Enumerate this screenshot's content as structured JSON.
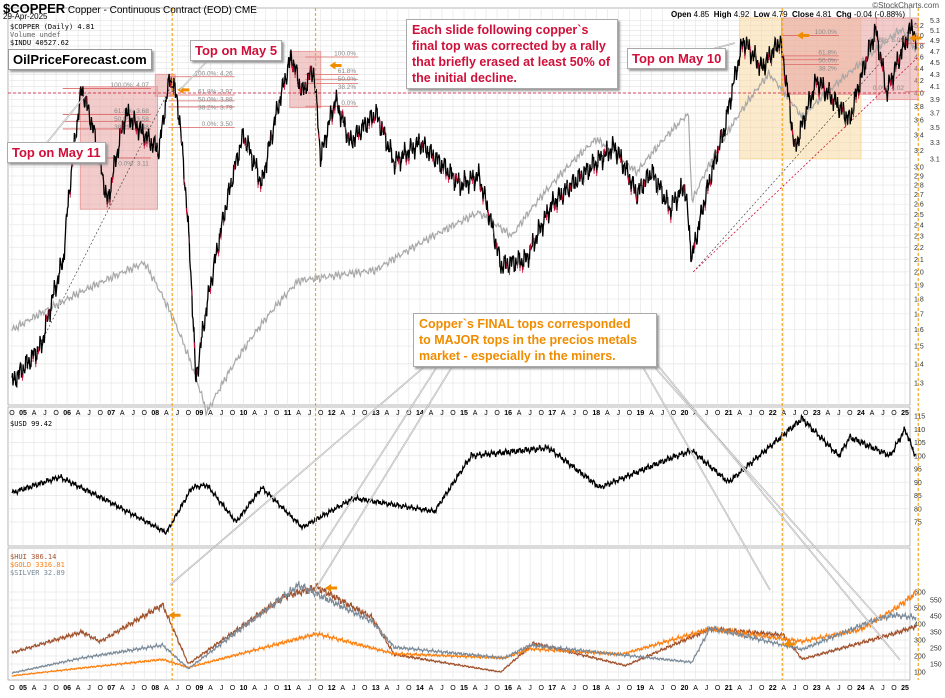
{
  "header": {
    "symbol": "$COPPER",
    "description": "Copper - Continuous Contract (EOD)",
    "exchange": "CME",
    "date": "29-Apr-2025",
    "watermark": "©StockCharts.com",
    "open_label": "Open",
    "open": "4.85",
    "high_label": "High",
    "high": "4.92",
    "low_label": "Low",
    "low": "4.79",
    "close_label": "Close",
    "close": "4.81",
    "chg_label": "Chg",
    "chg": "-0.04 (-0.88%)"
  },
  "legend_top": [
    "$COPPER (Daily) 4.81",
    "Volume undef",
    "$INDU 40527.62"
  ],
  "legend_usd": "$USD 99.42",
  "legend_metals": [
    {
      "text": "$HUI 386.14",
      "color": "#a0522d"
    },
    {
      "text": "$GOLD 3316.81",
      "color": "#ff7f0e"
    },
    {
      "text": "$SILVER 32.89",
      "color": "#7a8a99"
    }
  ],
  "site_label": "OilPriceForecast.com",
  "callouts": {
    "may11": "Top on May 11",
    "may5": "Top on May 5",
    "may10": "Top on May 10",
    "slide_note": [
      "Each slide following copper`s",
      "final top was corrected by a rally",
      "that briefly erased at least 50% of",
      "the initial decline."
    ],
    "final_tops": [
      "Copper`s FINAL tops corresponded",
      "to MAJOR tops in the precios metals",
      "market - especially in the miners."
    ]
  },
  "fib_2006": [
    "100.0%: 4.07",
    "61.8%: 3.68",
    "50.0%: 3.58",
    "38.2%: 3.48",
    "0.0%: 3.11"
  ],
  "fib_2008": [
    "100.0%: 4.26",
    "61.8%: 3.97",
    "50.0%: 3.88",
    "38.2%: 3.79",
    "0.0%: 3.50"
  ],
  "fib_2011": [
    "100.0%",
    "61.8%",
    "50.0%",
    "38.2%",
    "0.0%"
  ],
  "fib_2021": [
    "100.0%",
    "61.8%",
    "50.0%",
    "38.2%"
  ],
  "fib_2024": [
    "61.8%: 5.06",
    "0.0%: 4.02"
  ],
  "colors": {
    "copper": "#000000",
    "copper_down": "#d0103a",
    "indu": "#a8a8a8",
    "usd": "#000000",
    "hui": "#a0522d",
    "gold": "#ff7f0e",
    "silver": "#7a8a99",
    "marker": "#f5a623",
    "box_red": "#e8a0a0",
    "box_orange": "#f8d9a0"
  },
  "chart_data": {
    "type": "line",
    "x_tick_labels": [
      "O",
      "05",
      "A",
      "J",
      "O",
      "06",
      "A",
      "J",
      "O",
      "07",
      "A",
      "J",
      "O",
      "08",
      "A",
      "J",
      "O",
      "09",
      "A",
      "J",
      "O",
      "10",
      "A",
      "J",
      "O",
      "11",
      "A",
      "J",
      "O",
      "12",
      "A",
      "J",
      "O",
      "13",
      "A",
      "J",
      "O",
      "14",
      "A",
      "J",
      "O",
      "15",
      "A",
      "J",
      "O",
      "16",
      "A",
      "J",
      "O",
      "17",
      "A",
      "J",
      "O",
      "18",
      "A",
      "J",
      "O",
      "19",
      "A",
      "J",
      "O",
      "20",
      "A",
      "J",
      "O",
      "21",
      "A",
      "J",
      "O",
      "22",
      "A",
      "J",
      "O",
      "23",
      "A",
      "J",
      "O",
      "24",
      "A",
      "J",
      "O",
      "25",
      "A"
    ],
    "x_range": [
      "2004-10",
      "2025-04"
    ],
    "panels": [
      {
        "name": "copper",
        "scale": "log",
        "ylim": [
          1.25,
          5.35
        ],
        "y_ticks": [
          1.3,
          1.4,
          1.5,
          1.6,
          1.7,
          1.8,
          1.9,
          2.0,
          2.1,
          2.2,
          2.3,
          2.4,
          2.5,
          2.6,
          2.7,
          2.8,
          2.9,
          3.0,
          3.1,
          3.2,
          3.3,
          3.4,
          3.5,
          3.6,
          3.7,
          3.8,
          3.9,
          4.0,
          4.1,
          4.2,
          4.3,
          4.4,
          4.5,
          4.6,
          4.7,
          4.8,
          4.9,
          5.0,
          5.1,
          5.2,
          5.3
        ],
        "reference_line": 4.0,
        "series": [
          {
            "name": "$COPPER",
            "points": [
              [
                "2004-10",
                1.3
              ],
              [
                "2005-06",
                1.5
              ],
              [
                "2005-12",
                2.1
              ],
              [
                "2006-05",
                4.07
              ],
              [
                "2006-08",
                3.5
              ],
              [
                "2006-12",
                2.6
              ],
              [
                "2007-05",
                3.7
              ],
              [
                "2007-10",
                3.4
              ],
              [
                "2008-02",
                3.2
              ],
              [
                "2008-05",
                4.26
              ],
              [
                "2008-07",
                3.9
              ],
              [
                "2008-12",
                1.3
              ],
              [
                "2009-06",
                2.2
              ],
              [
                "2010-01",
                3.4
              ],
              [
                "2010-06",
                2.8
              ],
              [
                "2011-02",
                4.6
              ],
              [
                "2011-05",
                4.0
              ],
              [
                "2011-08",
                4.4
              ],
              [
                "2011-10",
                3.1
              ],
              [
                "2012-02",
                3.9
              ],
              [
                "2012-06",
                3.3
              ],
              [
                "2013-01",
                3.7
              ],
              [
                "2013-06",
                3.05
              ],
              [
                "2014-01",
                3.3
              ],
              [
                "2014-12",
                2.8
              ],
              [
                "2015-05",
                2.9
              ],
              [
                "2015-11",
                2.05
              ],
              [
                "2016-06",
                2.1
              ],
              [
                "2017-01",
                2.6
              ],
              [
                "2018-06",
                3.25
              ],
              [
                "2018-12",
                2.7
              ],
              [
                "2019-04",
                2.95
              ],
              [
                "2019-09",
                2.55
              ],
              [
                "2020-01",
                2.8
              ],
              [
                "2020-03",
                2.1
              ],
              [
                "2020-12",
                3.5
              ],
              [
                "2021-05",
                4.9
              ],
              [
                "2021-10",
                4.4
              ],
              [
                "2022-03",
                4.9
              ],
              [
                "2022-07",
                3.2
              ],
              [
                "2023-01",
                4.2
              ],
              [
                "2023-10",
                3.6
              ],
              [
                "2024-05",
                5.1
              ],
              [
                "2024-08",
                4.0
              ],
              [
                "2025-03",
                5.2
              ],
              [
                "2025-04",
                4.81
              ]
            ]
          },
          {
            "name": "$INDU",
            "points": [
              [
                "2004-10",
                10000
              ],
              [
                "2007-10",
                14000
              ],
              [
                "2009-03",
                6600
              ],
              [
                "2011-04",
                12800
              ],
              [
                "2013-01",
                13500
              ],
              [
                "2015-05",
                18000
              ],
              [
                "2016-02",
                16000
              ],
              [
                "2018-01",
                26000
              ],
              [
                "2018-12",
                22000
              ],
              [
                "2020-02",
                29500
              ],
              [
                "2020-03",
                19000
              ],
              [
                "2021-12",
                36000
              ],
              [
                "2022-09",
                29000
              ],
              [
                "2024-01",
                38000
              ],
              [
                "2024-12",
                45000
              ],
              [
                "2025-04",
                40527.62
              ]
            ]
          }
        ]
      },
      {
        "name": "usd",
        "scale": "linear",
        "ylim": [
          70,
          117
        ],
        "y_ticks": [
          75,
          80,
          85,
          90,
          95,
          100,
          105,
          110,
          115
        ],
        "series": [
          {
            "name": "$USD",
            "points": [
              [
                "2004-10",
                86
              ],
              [
                "2005-11",
                92
              ],
              [
                "2006-12",
                83
              ],
              [
                "2008-04",
                71
              ],
              [
                "2008-11",
                88
              ],
              [
                "2009-03",
                89
              ],
              [
                "2009-11",
                75
              ],
              [
                "2010-06",
                88
              ],
              [
                "2011-05",
                73
              ],
              [
                "2012-07",
                84
              ],
              [
                "2014-05",
                79
              ],
              [
                "2015-03",
                100
              ],
              [
                "2016-12",
                103
              ],
              [
                "2018-02",
                88
              ],
              [
                "2019-09",
                99
              ],
              [
                "2020-03",
                102
              ],
              [
                "2021-01",
                90
              ],
              [
                "2022-09",
                114
              ],
              [
                "2023-07",
                100
              ],
              [
                "2023-10",
                107
              ],
              [
                "2024-09",
                100
              ],
              [
                "2025-01",
                110
              ],
              [
                "2025-04",
                99.42
              ]
            ]
          }
        ]
      },
      {
        "name": "metals",
        "scale": "linear",
        "ylim": [
          90,
          640
        ],
        "y_ticks": [
          100,
          150,
          200,
          250,
          300,
          350,
          400,
          450,
          500,
          550,
          600
        ],
        "series": [
          {
            "name": "$HUI",
            "points": [
              [
                "2004-10",
                220
              ],
              [
                "2006-05",
                350
              ],
              [
                "2006-10",
                290
              ],
              [
                "2008-03",
                520
              ],
              [
                "2008-10",
                150
              ],
              [
                "2010-12",
                570
              ],
              [
                "2011-09",
                630
              ],
              [
                "2012-12",
                440
              ],
              [
                "2013-06",
                210
              ],
              [
                "2015-11",
                100
              ],
              [
                "2016-08",
                280
              ],
              [
                "2018-09",
                140
              ],
              [
                "2020-08",
                370
              ],
              [
                "2022-04",
                330
              ],
              [
                "2022-09",
                180
              ],
              [
                "2024-10",
                340
              ],
              [
                "2025-04",
                386.14
              ]
            ]
          },
          {
            "name": "$GOLD",
            "points": [
              [
                "2004-10",
                425
              ],
              [
                "2006-05",
                700
              ],
              [
                "2008-03",
                1000
              ],
              [
                "2008-10",
                720
              ],
              [
                "2011-09",
                1900
              ],
              [
                "2013-06",
                1200
              ],
              [
                "2015-12",
                1050
              ],
              [
                "2016-07",
                1370
              ],
              [
                "2018-08",
                1180
              ],
              [
                "2020-08",
                2070
              ],
              [
                "2022-09",
                1630
              ],
              [
                "2024-01",
                2050
              ],
              [
                "2024-10",
                2750
              ],
              [
                "2025-04",
                3316.81
              ]
            ]
          },
          {
            "name": "$SILVER",
            "points": [
              [
                "2004-10",
                7
              ],
              [
                "2006-05",
                14
              ],
              [
                "2008-03",
                20
              ],
              [
                "2008-10",
                9
              ],
              [
                "2011-04",
                48
              ],
              [
                "2012-12",
                31
              ],
              [
                "2013-06",
                19
              ],
              [
                "2015-12",
                14
              ],
              [
                "2016-07",
                20
              ],
              [
                "2020-03",
                12
              ],
              [
                "2020-08",
                28
              ],
              [
                "2022-09",
                18
              ],
              [
                "2024-05",
                32
              ],
              [
                "2024-10",
                34
              ],
              [
                "2025-04",
                32.89
              ]
            ]
          }
        ]
      }
    ],
    "vertical_markers": [
      "2008-05",
      "2011-08",
      "2022-03",
      "2025-04"
    ],
    "grid": true
  }
}
